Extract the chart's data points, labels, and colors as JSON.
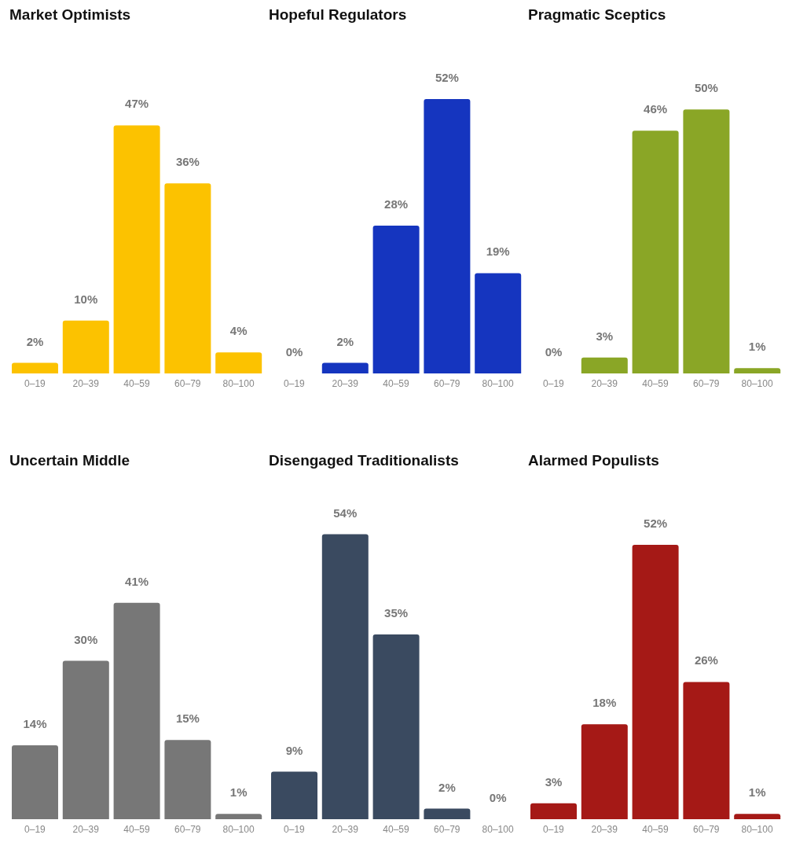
{
  "chart_data": [
    {
      "type": "bar",
      "title": "Market Optimists",
      "categories": [
        "0–19",
        "20–39",
        "40–59",
        "60–79",
        "80–100"
      ],
      "values": [
        2,
        10,
        47,
        36,
        4
      ],
      "color": "#fcc200",
      "value_labels": [
        "2%",
        "10%",
        "47%",
        "36%",
        "4%"
      ]
    },
    {
      "type": "bar",
      "title": "Hopeful Regulators",
      "categories": [
        "0–19",
        "20–39",
        "40–59",
        "60–79",
        "80–100"
      ],
      "values": [
        0,
        2,
        28,
        52,
        19
      ],
      "color": "#1535bf",
      "value_labels": [
        "0%",
        "2%",
        "28%",
        "52%",
        "19%"
      ]
    },
    {
      "type": "bar",
      "title": "Pragmatic Sceptics",
      "categories": [
        "0–19",
        "20–39",
        "40–59",
        "60–79",
        "80–100"
      ],
      "values": [
        0,
        3,
        46,
        50,
        1
      ],
      "color": "#8aa626",
      "value_labels": [
        "0%",
        "3%",
        "46%",
        "50%",
        "1%"
      ]
    },
    {
      "type": "bar",
      "title": "Uncertain Middle",
      "categories": [
        "0–19",
        "20–39",
        "40–59",
        "60–79",
        "80–100"
      ],
      "values": [
        14,
        30,
        41,
        15,
        1
      ],
      "color": "#777777",
      "value_labels": [
        "14%",
        "30%",
        "41%",
        "15%",
        "1%"
      ]
    },
    {
      "type": "bar",
      "title": "Disengaged Traditionalists",
      "categories": [
        "0–19",
        "20–39",
        "40–59",
        "60–79",
        "80–100"
      ],
      "values": [
        9,
        54,
        35,
        2,
        0
      ],
      "color": "#3a4a60",
      "value_labels": [
        "9%",
        "54%",
        "35%",
        "2%",
        "0%"
      ]
    },
    {
      "type": "bar",
      "title": "Alarmed Populists",
      "categories": [
        "0–19",
        "20–39",
        "40–59",
        "60–79",
        "80–100"
      ],
      "values": [
        3,
        18,
        52,
        26,
        1
      ],
      "color": "#a51916",
      "value_labels": [
        "3%",
        "18%",
        "52%",
        "26%",
        "1%"
      ]
    }
  ]
}
